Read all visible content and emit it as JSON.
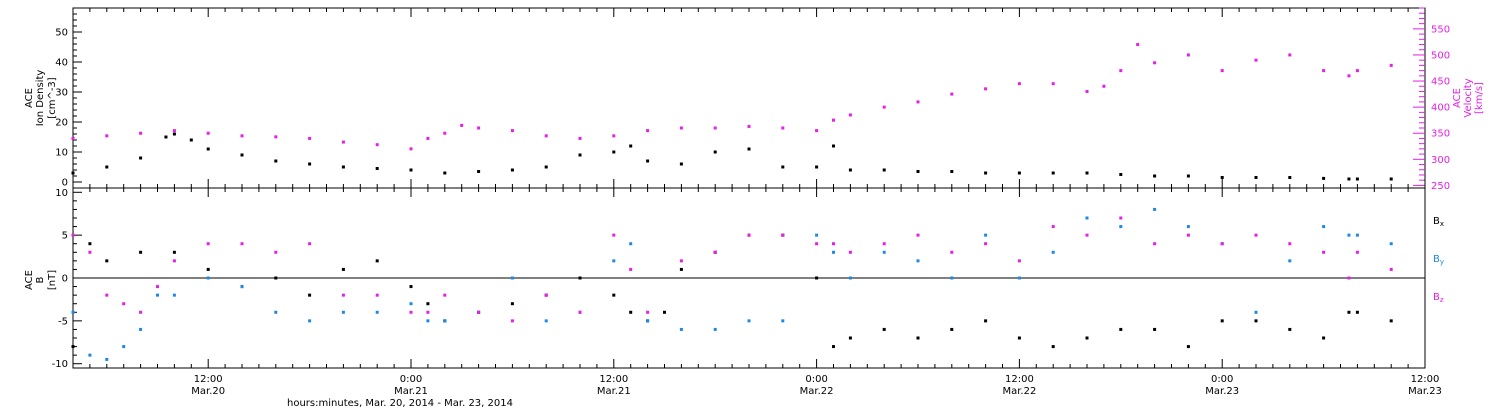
{
  "colors": {
    "density": "#000000",
    "velocity": "#e61ee6",
    "bx": "#000000",
    "by": "#1e88e5",
    "bz": "#e61ee6",
    "frame": "#000000"
  },
  "chart_data": [
    {
      "type": "scatter",
      "panel": "top",
      "ylabel_left": [
        "ACE",
        "Ion Density",
        "[cm^-3]"
      ],
      "ylabel_right": [
        "ACE",
        "Velocity",
        "[km/s]"
      ],
      "x_range_hours": [
        4,
        84
      ],
      "ylim_left": [
        -2,
        58
      ],
      "yticks_left": [
        0,
        10,
        20,
        30,
        40,
        50
      ],
      "ylim_right": [
        245,
        590
      ],
      "yticks_right": [
        250,
        300,
        350,
        400,
        450,
        500,
        550
      ],
      "series": [
        {
          "key": "density",
          "axis": "left",
          "x": [
            4,
            6,
            8,
            9.5,
            10,
            11,
            12,
            14,
            16,
            18,
            20,
            22,
            24,
            26,
            28,
            30,
            32,
            34,
            36,
            37,
            38,
            40,
            42,
            44,
            46,
            48,
            49,
            50,
            52,
            54,
            56,
            58,
            60,
            62,
            64,
            66,
            68,
            70,
            72,
            74,
            76,
            78,
            80,
            82,
            79.5
          ],
          "values": [
            3,
            5,
            8,
            15,
            16,
            14,
            11,
            9,
            7,
            6,
            5,
            4.5,
            4,
            3,
            3.5,
            4,
            5,
            9,
            10,
            12,
            7,
            6,
            10,
            11,
            5,
            5,
            12,
            4,
            4,
            3.5,
            3.5,
            3,
            3,
            3,
            3,
            2.5,
            2,
            2,
            1.5,
            1.5,
            1.5,
            1.2,
            1,
            1,
            1
          ]
        },
        {
          "key": "velocity",
          "axis": "right",
          "x": [
            4,
            6,
            8,
            10,
            12,
            14,
            16,
            18,
            20,
            22,
            24,
            25,
            26,
            27,
            28,
            30,
            32,
            34,
            36,
            38,
            40,
            42,
            44,
            46,
            48,
            49,
            50,
            52,
            54,
            56,
            58,
            60,
            62,
            64,
            65,
            66,
            67,
            68,
            70,
            72,
            74,
            76,
            78,
            80,
            82,
            79.5
          ],
          "values": [
            340,
            345,
            350,
            355,
            350,
            345,
            343,
            340,
            333,
            328,
            320,
            340,
            350,
            365,
            360,
            355,
            345,
            340,
            345,
            355,
            360,
            360,
            363,
            360,
            355,
            375,
            385,
            400,
            410,
            425,
            435,
            445,
            445,
            430,
            440,
            470,
            520,
            485,
            500,
            470,
            490,
            500,
            470,
            470,
            480,
            460
          ]
        }
      ]
    },
    {
      "type": "scatter",
      "panel": "bottom",
      "ylabel_left": [
        "ACE",
        "B",
        "[nT]"
      ],
      "x_range_hours": [
        4,
        84
      ],
      "ylim": [
        -10.5,
        10.5
      ],
      "yticks": [
        -10,
        -5,
        0,
        5,
        10
      ],
      "zero_line": true,
      "xticks": [
        {
          "hour": 12,
          "time": "12:00",
          "date": "Mar.20"
        },
        {
          "hour": 24,
          "time": "0:00",
          "date": "Mar.21"
        },
        {
          "hour": 36,
          "time": "12:00",
          "date": "Mar.21"
        },
        {
          "hour": 48,
          "time": "0:00",
          "date": "Mar.22"
        },
        {
          "hour": 60,
          "time": "12:00",
          "date": "Mar.22"
        },
        {
          "hour": 72,
          "time": "0:00",
          "date": "Mar.23"
        },
        {
          "hour": 84,
          "time": "12:00",
          "date": "Mar.23"
        }
      ],
      "xlabel": "hours:minutes, Mar. 20, 2014 - Mar. 23, 2014",
      "series": [
        {
          "key": "bx",
          "label": "B",
          "sub": "x",
          "x": [
            4,
            5,
            6,
            8,
            10,
            12,
            14,
            16,
            18,
            20,
            22,
            24,
            25,
            26,
            28,
            30,
            32,
            34,
            36,
            37,
            38,
            39,
            40,
            42,
            44,
            46,
            48,
            49,
            50,
            52,
            54,
            56,
            58,
            60,
            62,
            64,
            66,
            68,
            70,
            72,
            74,
            76,
            78,
            80,
            82,
            79.5
          ],
          "values": [
            -8,
            4,
            2,
            3,
            3,
            1,
            -1,
            0,
            -2,
            1,
            2,
            -1,
            -3,
            -5,
            -4,
            -3,
            -2,
            0,
            -2,
            -4,
            -5,
            -4,
            1,
            3,
            5,
            5,
            0,
            -8,
            -7,
            -6,
            -7,
            -6,
            -5,
            -7,
            -8,
            -7,
            -6,
            -6,
            -8,
            -5,
            -5,
            -6,
            -7,
            -4,
            -5,
            -4
          ]
        },
        {
          "key": "by",
          "label": "B",
          "sub": "y",
          "x": [
            4,
            5,
            6,
            7,
            8,
            9,
            10,
            12,
            14,
            16,
            18,
            20,
            22,
            24,
            25,
            26,
            28,
            30,
            32,
            34,
            36,
            37,
            38,
            40,
            42,
            44,
            46,
            48,
            49,
            50,
            52,
            54,
            56,
            58,
            60,
            62,
            64,
            66,
            68,
            70,
            72,
            74,
            76,
            78,
            80,
            82,
            79.5
          ],
          "values": [
            -4,
            -9,
            -9.5,
            -8,
            -6,
            -2,
            -2,
            0,
            -1,
            -4,
            -5,
            -4,
            -4,
            -3,
            -5,
            -5,
            -4,
            0,
            -5,
            -4,
            2,
            4,
            -5,
            -6,
            -6,
            -5,
            -5,
            5,
            3,
            0,
            3,
            2,
            0,
            5,
            0,
            3,
            7,
            6,
            8,
            6,
            4,
            -4,
            2,
            6,
            5,
            4,
            5
          ]
        },
        {
          "key": "bz",
          "label": "B",
          "sub": "z",
          "x": [
            4,
            5,
            6,
            7,
            8,
            9,
            10,
            12,
            14,
            16,
            18,
            20,
            22,
            24,
            25,
            26,
            28,
            30,
            32,
            34,
            36,
            37,
            38,
            40,
            42,
            44,
            46,
            48,
            49,
            50,
            52,
            54,
            56,
            58,
            60,
            62,
            64,
            66,
            68,
            70,
            72,
            74,
            76,
            78,
            80,
            82,
            79.5
          ],
          "values": [
            5,
            3,
            -2,
            -3,
            -4,
            -1,
            2,
            4,
            4,
            3,
            4,
            -2,
            -2,
            -4,
            -4,
            -2,
            -4,
            -5,
            -2,
            -4,
            5,
            1,
            -4,
            2,
            3,
            5,
            5,
            4,
            4,
            3,
            4,
            5,
            3,
            4,
            2,
            6,
            5,
            7,
            4,
            5,
            4,
            5,
            4,
            3,
            3,
            1,
            0
          ]
        }
      ]
    }
  ]
}
